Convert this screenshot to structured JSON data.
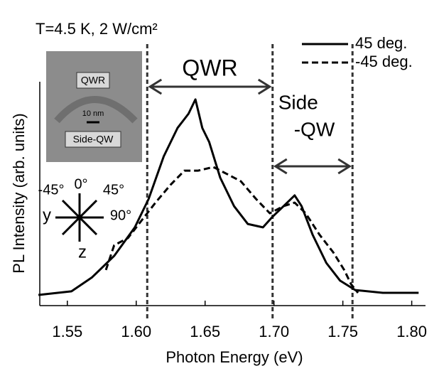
{
  "chart_data": {
    "type": "line",
    "title": "T=4.5 K, 2 W/cm²",
    "x_label": "Photon Energy (eV)",
    "y_label": "PL Intensity (arb. units)",
    "xlim": [
      1.53,
      1.81
    ],
    "ylim": [
      0,
      1.05
    ],
    "xticks": [
      1.55,
      {
        "value": 1.6,
        "label": "1.60"
      },
      1.65,
      {
        "value": 1.7,
        "label": "1.70"
      },
      1.75,
      {
        "value": 1.8,
        "label": "1.80"
      }
    ],
    "series": [
      {
        "name": "45 deg.",
        "color": "#000000",
        "dash": false,
        "x": [
          1.529,
          1.553,
          1.568,
          1.584,
          1.599,
          1.609,
          1.62,
          1.63,
          1.638,
          1.643,
          1.648,
          1.653,
          1.661,
          1.671,
          1.681,
          1.692,
          1.699,
          1.707,
          1.715,
          1.72,
          1.728,
          1.738,
          1.748,
          1.759,
          1.779,
          1.805
        ],
        "values": [
          0.05,
          0.067,
          0.133,
          0.233,
          0.367,
          0.5,
          0.7,
          0.833,
          0.9,
          0.967,
          0.833,
          0.767,
          0.6,
          0.467,
          0.383,
          0.367,
          0.417,
          0.467,
          0.517,
          0.467,
          0.333,
          0.2,
          0.117,
          0.073,
          0.06,
          0.06
        ]
      },
      {
        "name": "-45 deg.",
        "color": "#000000",
        "dash": true,
        "x": [
          1.578,
          1.584,
          1.594,
          1.604,
          1.614,
          1.625,
          1.635,
          1.645,
          1.656,
          1.666,
          1.676,
          1.687,
          1.697,
          1.707,
          1.715,
          1.723,
          1.733,
          1.743,
          1.751,
          1.756,
          1.761
        ],
        "values": [
          0.167,
          0.283,
          0.317,
          0.4,
          0.483,
          0.567,
          0.633,
          0.633,
          0.65,
          0.617,
          0.583,
          0.5,
          0.433,
          0.467,
          0.483,
          0.433,
          0.333,
          0.25,
          0.167,
          0.1,
          0.06
        ]
      }
    ],
    "vlines": [
      1.608,
      1.699,
      1.757
    ],
    "annotations": {
      "qwr": "QWR",
      "side": "Side",
      "side_qw": "-QW"
    },
    "inset": {
      "top": "QWR",
      "scale": "10 nm",
      "bottom": "Side-QW"
    },
    "axes_diagram": {
      "zero": "0°",
      "plus45": "45°",
      "minus45": "-45°",
      "ninety": "90°",
      "y": "y",
      "z": "z"
    }
  }
}
